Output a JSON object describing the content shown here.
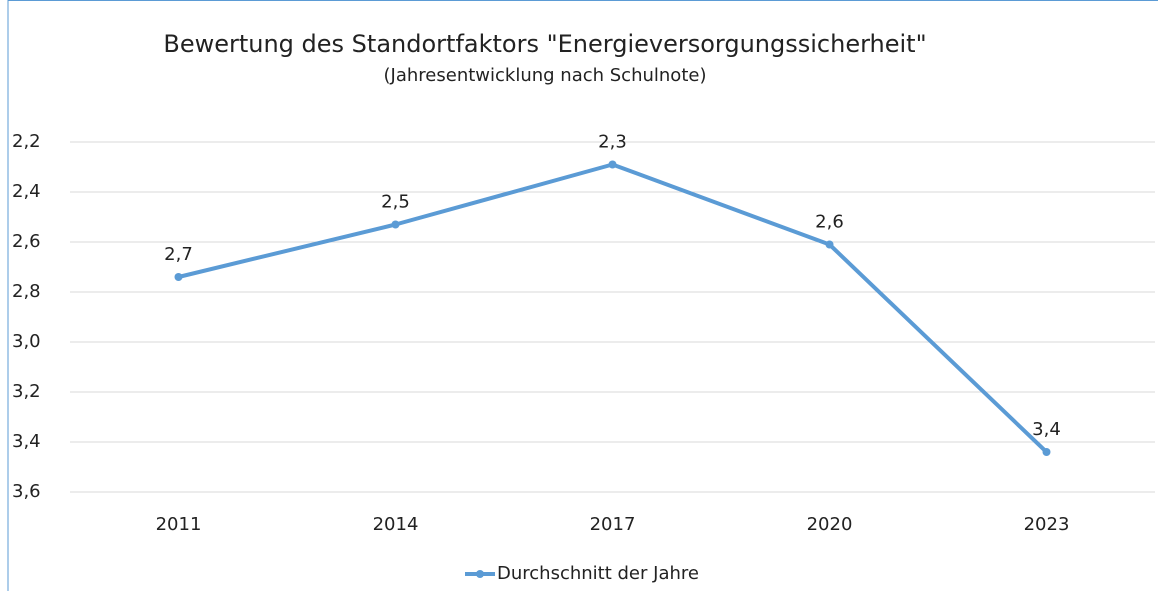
{
  "chart_data": {
    "type": "line",
    "title": "Bewertung des Standortfaktors \"Energieversorgungssicherheit\"",
    "subtitle": "(Jahresentwicklung nach Schulnote)",
    "categories": [
      "2011",
      "2014",
      "2017",
      "2020",
      "2023"
    ],
    "series": [
      {
        "name": "Durchschnitt der Jahre",
        "color": "#5b9bd5",
        "values": [
          2.74,
          2.53,
          2.29,
          2.61,
          3.44
        ],
        "value_labels": [
          "2,7",
          "2,5",
          "2,3",
          "2,6",
          "3,4"
        ]
      }
    ],
    "ylim": [
      2.2,
      3.6
    ],
    "y_inverted": true,
    "yticks": [
      {
        "value": 2.2,
        "label": "2,2"
      },
      {
        "value": 2.4,
        "label": "2,4"
      },
      {
        "value": 2.6,
        "label": "2,6"
      },
      {
        "value": 2.8,
        "label": "2,8"
      },
      {
        "value": 3.0,
        "label": "3,0"
      },
      {
        "value": 3.2,
        "label": "3,2"
      },
      {
        "value": 3.4,
        "label": "3,4"
      },
      {
        "value": 3.6,
        "label": "3,6"
      }
    ],
    "grid": true,
    "legend": "bottom"
  }
}
